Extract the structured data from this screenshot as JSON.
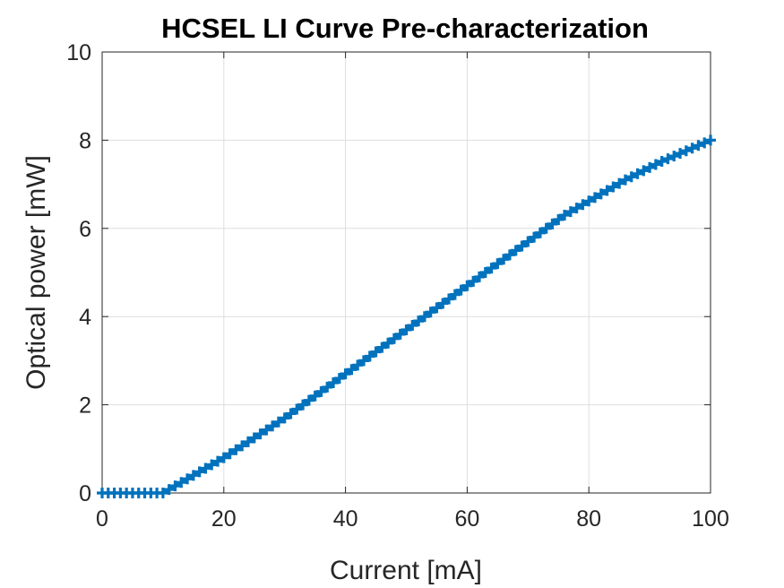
{
  "chart_data": {
    "type": "line",
    "title": "HCSEL LI Curve Pre-characterization",
    "xlabel": "Current [mA]",
    "ylabel": "Optical power [mW]",
    "xlim": [
      0,
      100
    ],
    "ylim": [
      0,
      10
    ],
    "xticks": [
      0,
      20,
      40,
      60,
      80,
      100
    ],
    "yticks": [
      0,
      2,
      4,
      6,
      8,
      10
    ],
    "grid": true,
    "marker": "plus",
    "colors": {
      "series": "#0072BD"
    },
    "series": [
      {
        "x": [
          0,
          1,
          2,
          3,
          4,
          5,
          6,
          7,
          8,
          9,
          10,
          11,
          12,
          13,
          14,
          15,
          16,
          17,
          18,
          19,
          20,
          21,
          22,
          23,
          24,
          25,
          26,
          27,
          28,
          29,
          30,
          31,
          32,
          33,
          34,
          35,
          36,
          37,
          38,
          39,
          40,
          41,
          42,
          43,
          44,
          45,
          46,
          47,
          48,
          49,
          50,
          51,
          52,
          53,
          54,
          55,
          56,
          57,
          58,
          59,
          60,
          61,
          62,
          63,
          64,
          65,
          66,
          67,
          68,
          69,
          70,
          71,
          72,
          73,
          74,
          75,
          76,
          77,
          78,
          79,
          80,
          81,
          82,
          83,
          84,
          85,
          86,
          87,
          88,
          89,
          90,
          91,
          92,
          93,
          94,
          95,
          96,
          97,
          98,
          99,
          100
        ],
        "y": [
          0,
          0,
          0,
          0,
          0,
          0,
          0,
          0,
          0,
          0,
          0,
          0.08,
          0.16,
          0.24,
          0.32,
          0.4,
          0.48,
          0.56,
          0.64,
          0.72,
          0.8,
          0.89,
          0.98,
          1.07,
          1.16,
          1.25,
          1.34,
          1.43,
          1.52,
          1.61,
          1.7,
          1.8,
          1.9,
          2.0,
          2.1,
          2.2,
          2.3,
          2.4,
          2.5,
          2.6,
          2.7,
          2.8,
          2.9,
          3.0,
          3.1,
          3.2,
          3.3,
          3.4,
          3.5,
          3.6,
          3.7,
          3.8,
          3.9,
          4.0,
          4.1,
          4.2,
          4.3,
          4.4,
          4.5,
          4.6,
          4.7,
          4.8,
          4.9,
          5.0,
          5.1,
          5.2,
          5.3,
          5.4,
          5.5,
          5.6,
          5.7,
          5.8,
          5.9,
          6.0,
          6.1,
          6.2,
          6.3,
          6.38,
          6.46,
          6.54,
          6.62,
          6.7,
          6.78,
          6.86,
          6.94,
          7.02,
          7.1,
          7.17,
          7.24,
          7.31,
          7.38,
          7.45,
          7.52,
          7.58,
          7.64,
          7.7,
          7.76,
          7.82,
          7.88,
          7.94,
          8.0
        ]
      }
    ]
  }
}
